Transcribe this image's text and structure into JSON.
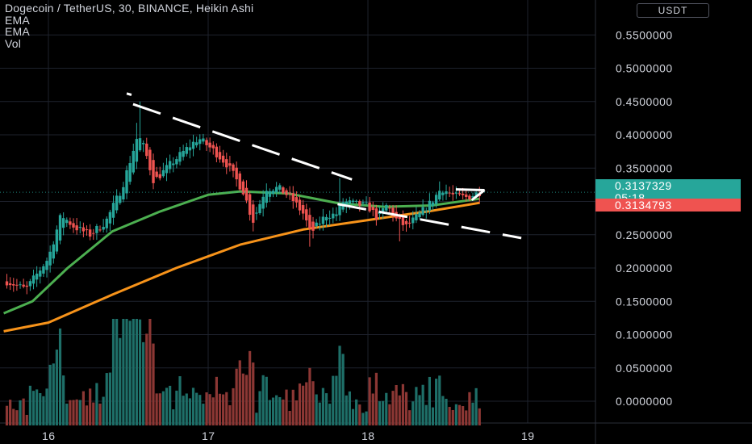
{
  "legend": {
    "symbol_line": "Dogecoin / TetherUS, 30, BINANCE, Heikin Ashi",
    "indicator_1": "EMA",
    "indicator_2": "EMA",
    "indicator_3": "Vol"
  },
  "currency_button": "USDT",
  "price_tags": {
    "last_price": "0.3137329",
    "countdown": "05:18",
    "prev_price": "0.3134793"
  },
  "colors": {
    "background": "#000000",
    "bull": "#26a69a",
    "bear": "#ef5350",
    "ema_fast": "#4caf50",
    "ema_slow": "#f7931a",
    "trendline": "#ffffff",
    "grid": "#1e222d",
    "text": "#d1d4dc"
  },
  "chart_data": {
    "type": "candlestick",
    "y_ticks": [
      "0.5500000",
      "0.5000000",
      "0.4500000",
      "0.4000000",
      "0.3500000",
      "0.3000000",
      "0.2500000",
      "0.2000000",
      "0.1500000",
      "0.1000000",
      "0.0500000",
      "0.0000000"
    ],
    "x_ticks": [
      "16",
      "17",
      "18",
      "19"
    ],
    "x_tick_days": [
      16,
      17,
      18,
      19
    ],
    "ylim": [
      -0.02,
      0.57
    ],
    "xlim_days": [
      15.72,
      19.18
    ],
    "vol_max": 0.12,
    "key_points": [
      {
        "d": 15.74,
        "p": 0.18
      },
      {
        "d": 15.86,
        "p": 0.168
      },
      {
        "d": 16.0,
        "p": 0.215
      },
      {
        "d": 16.08,
        "p": 0.28
      },
      {
        "d": 16.16,
        "p": 0.262
      },
      {
        "d": 16.26,
        "p": 0.25
      },
      {
        "d": 16.36,
        "p": 0.27
      },
      {
        "d": 16.46,
        "p": 0.32
      },
      {
        "d": 16.56,
        "p": 0.4
      },
      {
        "d": 16.6,
        "p": 0.38
      },
      {
        "d": 16.66,
        "p": 0.33
      },
      {
        "d": 16.76,
        "p": 0.355
      },
      {
        "d": 16.86,
        "p": 0.378
      },
      {
        "d": 16.94,
        "p": 0.395
      },
      {
        "d": 17.04,
        "p": 0.375
      },
      {
        "d": 17.12,
        "p": 0.355
      },
      {
        "d": 17.22,
        "p": 0.315
      },
      {
        "d": 17.28,
        "p": 0.27
      },
      {
        "d": 17.36,
        "p": 0.32
      },
      {
        "d": 17.44,
        "p": 0.32
      },
      {
        "d": 17.52,
        "p": 0.305
      },
      {
        "d": 17.6,
        "p": 0.28
      },
      {
        "d": 17.64,
        "p": 0.252
      },
      {
        "d": 17.74,
        "p": 0.28
      },
      {
        "d": 17.8,
        "p": 0.28
      },
      {
        "d": 17.84,
        "p": 0.3
      },
      {
        "d": 17.92,
        "p": 0.296
      },
      {
        "d": 18.0,
        "p": 0.293
      },
      {
        "d": 18.06,
        "p": 0.275
      },
      {
        "d": 18.12,
        "p": 0.295
      },
      {
        "d": 18.18,
        "p": 0.272
      },
      {
        "d": 18.24,
        "p": 0.262
      },
      {
        "d": 18.32,
        "p": 0.28
      },
      {
        "d": 18.4,
        "p": 0.3
      },
      {
        "d": 18.46,
        "p": 0.32
      },
      {
        "d": 18.54,
        "p": 0.308
      },
      {
        "d": 18.62,
        "p": 0.306
      },
      {
        "d": 18.7,
        "p": 0.314
      }
    ],
    "ema_fast": [
      {
        "d": 15.72,
        "p": 0.132
      },
      {
        "d": 15.9,
        "p": 0.15
      },
      {
        "d": 16.12,
        "p": 0.2
      },
      {
        "d": 16.4,
        "p": 0.255
      },
      {
        "d": 16.7,
        "p": 0.285
      },
      {
        "d": 17.0,
        "p": 0.31
      },
      {
        "d": 17.2,
        "p": 0.315
      },
      {
        "d": 17.5,
        "p": 0.312
      },
      {
        "d": 17.82,
        "p": 0.297
      },
      {
        "d": 18.1,
        "p": 0.292
      },
      {
        "d": 18.4,
        "p": 0.294
      },
      {
        "d": 18.7,
        "p": 0.304
      }
    ],
    "ema_slow": [
      {
        "d": 15.72,
        "p": 0.105
      },
      {
        "d": 16.0,
        "p": 0.118
      },
      {
        "d": 16.4,
        "p": 0.16
      },
      {
        "d": 16.8,
        "p": 0.2
      },
      {
        "d": 17.2,
        "p": 0.235
      },
      {
        "d": 17.6,
        "p": 0.258
      },
      {
        "d": 18.0,
        "p": 0.272
      },
      {
        "d": 18.4,
        "p": 0.286
      },
      {
        "d": 18.7,
        "p": 0.298
      }
    ],
    "trendlines": [
      {
        "from": {
          "d": 16.53,
          "p": 0.446
        },
        "to": {
          "d": 17.9,
          "p": 0.333
        },
        "dashed": true
      },
      {
        "from": {
          "d": 17.81,
          "p": 0.296
        },
        "to": {
          "d": 18.96,
          "p": 0.245
        },
        "dashed": true
      },
      {
        "from": {
          "d": 18.55,
          "p": 0.318
        },
        "to": {
          "d": 18.73,
          "p": 0.317
        },
        "dashed": false
      },
      {
        "from": {
          "d": 18.73,
          "p": 0.317
        },
        "to": {
          "d": 18.65,
          "p": 0.302
        },
        "dashed": false
      }
    ]
  }
}
